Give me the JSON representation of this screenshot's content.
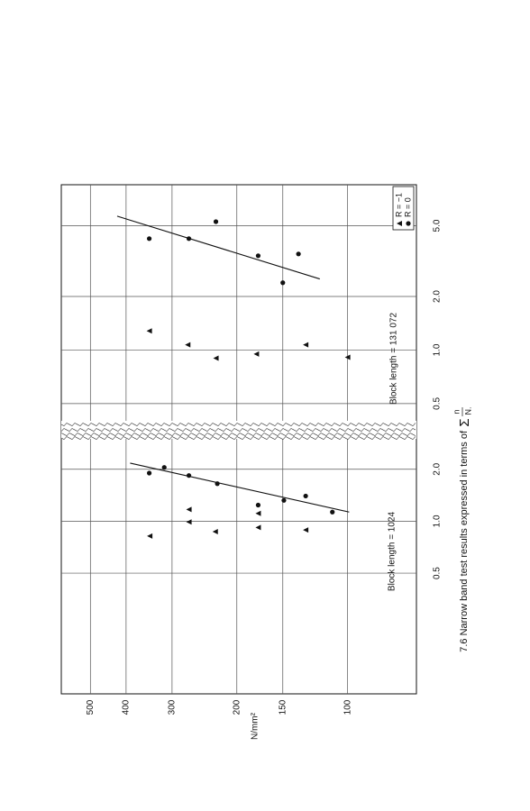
{
  "chart_data": [
    {
      "type": "scatter",
      "title": "7.6 Narrow band test results expressed in terms of",
      "title_symbol": "Σ",
      "title_numerator": "n",
      "title_denominator": "N.",
      "ylabel": "N/mm²",
      "annotation": "Block length = 1024",
      "log": true,
      "grid": true,
      "xlim": [
        0.1,
        3
      ],
      "xticks": [
        0.5,
        {
          "value": 1,
          "label": "1.0"
        },
        {
          "value": 2,
          "label": "2.0"
        }
      ],
      "ylim": [
        65,
        600
      ],
      "yticks": [
        100,
        150,
        200,
        300,
        400,
        500
      ],
      "series": [
        {
          "marker": "triangle",
          "color": "#111111",
          "x": [
            0.82,
            1.17,
            0.99,
            0.87,
            1.11,
            0.92,
            0.89
          ],
          "values": [
            345,
            270,
            270,
            229,
            175,
            175,
            130
          ]
        },
        {
          "marker": "circle",
          "color": "#111111",
          "x": [
            1.9,
            2.05,
            1.84,
            1.65,
            1.24,
            1.32,
            1.4,
            1.13
          ],
          "values": [
            346,
            315,
            270,
            226,
            175,
            149,
            130,
            110
          ]
        }
      ],
      "fit_line": {
        "x": [
          2.17,
          1.13
        ],
        "values": [
          390,
          99
        ]
      }
    },
    {
      "type": "scatter",
      "annotation": "Block length = 131 072",
      "log": true,
      "grid": true,
      "legend": "upper right",
      "xlim": [
        0.4,
        8.5
      ],
      "xticks": [
        0.5,
        {
          "value": 1,
          "label": "1.0"
        },
        {
          "value": 2,
          "label": "2.0"
        },
        {
          "value": 5,
          "label": "5.0"
        }
      ],
      "ylim": [
        65,
        600
      ],
      "yticks": [
        100,
        150,
        200,
        300,
        400,
        500
      ],
      "series": [
        {
          "name": "R = −1",
          "marker": "triangle",
          "color": "#111111",
          "x": [
            1.28,
            1.07,
            0.9,
            0.95,
            1.07,
            0.91
          ],
          "values": [
            346,
            272,
            228,
            177,
            130,
            100
          ]
        },
        {
          "name": "R = 0",
          "marker": "circle",
          "color": "#111111",
          "x": [
            4.23,
            4.23,
            5.27,
            3.39,
            3.47,
            2.39
          ],
          "values": [
            346,
            270,
            228,
            175,
            136,
            150
          ]
        }
      ],
      "fit_line": {
        "x": [
          5.66,
          2.51
        ],
        "values": [
          423,
          119
        ]
      }
    }
  ]
}
